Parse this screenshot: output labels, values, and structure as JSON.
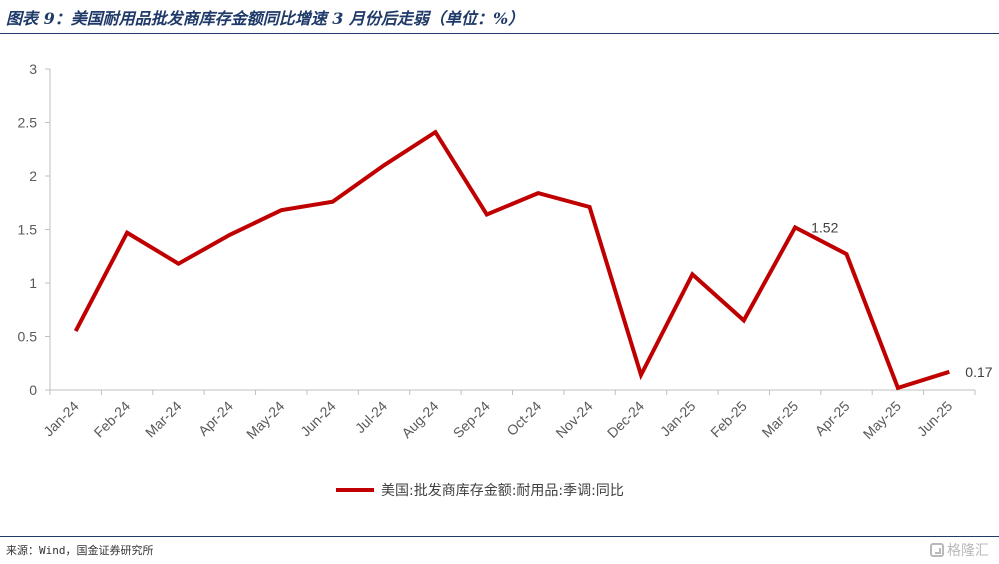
{
  "header": {
    "title": "图表 9：美国耐用品批发商库存金额同比增速 3 月份后走弱（单位：%）"
  },
  "footer": {
    "source": "来源：Wind，国金证券研究所",
    "watermark": "格隆汇"
  },
  "colors": {
    "line": "#c00000",
    "axis": "#bfbfbf",
    "text": "#595959",
    "header_rule": "#1f3a68"
  },
  "chart_data": {
    "type": "line",
    "categories": [
      "Jan-24",
      "Feb-24",
      "Mar-24",
      "Apr-24",
      "May-24",
      "Jun-24",
      "Jul-24",
      "Aug-24",
      "Sep-24",
      "Oct-24",
      "Nov-24",
      "Dec-24",
      "Jan-25",
      "Feb-25",
      "Mar-25",
      "Apr-25",
      "May-25",
      "Jun-25"
    ],
    "series": [
      {
        "name": "美国:批发商库存金额:耐用品:季调:同比",
        "values": [
          0.55,
          1.47,
          1.18,
          1.45,
          1.68,
          1.76,
          2.1,
          2.41,
          1.64,
          1.84,
          1.71,
          0.14,
          1.08,
          0.65,
          1.52,
          1.27,
          0.02,
          0.17
        ]
      }
    ],
    "y_ticks": [
      "0",
      "0.5",
      "1",
      "1.5",
      "2",
      "2.5",
      "3"
    ],
    "ylim": [
      0,
      3
    ],
    "grid": false,
    "legend_position": "bottom",
    "annotations": [
      {
        "category": "Mar-25",
        "text": "1.52"
      },
      {
        "category": "Jun-25",
        "text": "0.17"
      }
    ]
  }
}
